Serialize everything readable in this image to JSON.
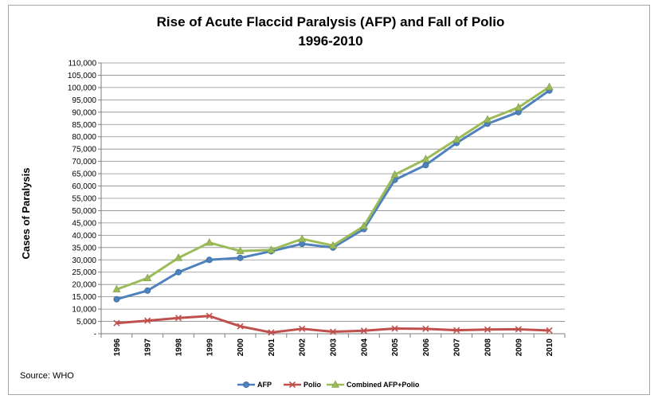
{
  "chart_data": {
    "type": "line",
    "title": "Rise of Acute Flaccid Paralysis (AFP) and Fall of Polio",
    "subtitle": "1996-2010",
    "xlabel": "",
    "ylabel": "Cases of Paralysis",
    "source": "Source: WHO",
    "categories": [
      "1996",
      "1997",
      "1998",
      "1999",
      "2000",
      "2001",
      "2002",
      "2003",
      "2004",
      "2005",
      "2006",
      "2007",
      "2008",
      "2009",
      "2010"
    ],
    "ylim": [
      0,
      110000
    ],
    "y_ticks": [
      0,
      5000,
      10000,
      15000,
      20000,
      25000,
      30000,
      35000,
      40000,
      45000,
      50000,
      55000,
      60000,
      65000,
      70000,
      75000,
      80000,
      85000,
      90000,
      95000,
      100000,
      105000,
      110000
    ],
    "y_tick_labels": [
      "-",
      "5,000",
      "10,000",
      "15,000",
      "20,000",
      "25,000",
      "30,000",
      "35,000",
      "40,000",
      "45,000",
      "50,000",
      "55,000",
      "60,000",
      "65,000",
      "70,000",
      "75,000",
      "80,000",
      "85,000",
      "90,000",
      "95,000",
      "100,000",
      "105,000",
      "110,000"
    ],
    "grid": true,
    "legend_position": "bottom",
    "series": [
      {
        "name": "AFP",
        "color": "#4f81bd",
        "marker": "circle",
        "values": [
          14000,
          17500,
          25000,
          30000,
          30800,
          33500,
          36500,
          35000,
          42500,
          62500,
          68500,
          77500,
          85300,
          90000,
          98800
        ]
      },
      {
        "name": "Polio",
        "color": "#c0504d",
        "marker": "x",
        "values": [
          4300,
          5300,
          6400,
          7200,
          3000,
          500,
          2000,
          800,
          1200,
          2100,
          2000,
          1400,
          1700,
          1800,
          1300
        ]
      },
      {
        "name": "Combined AFP+Polio",
        "color": "#9bbb59",
        "marker": "triangle",
        "values": [
          18000,
          22600,
          30800,
          37000,
          33600,
          34000,
          38500,
          35800,
          43700,
          64600,
          70900,
          78900,
          87000,
          91900,
          100200
        ]
      }
    ]
  }
}
